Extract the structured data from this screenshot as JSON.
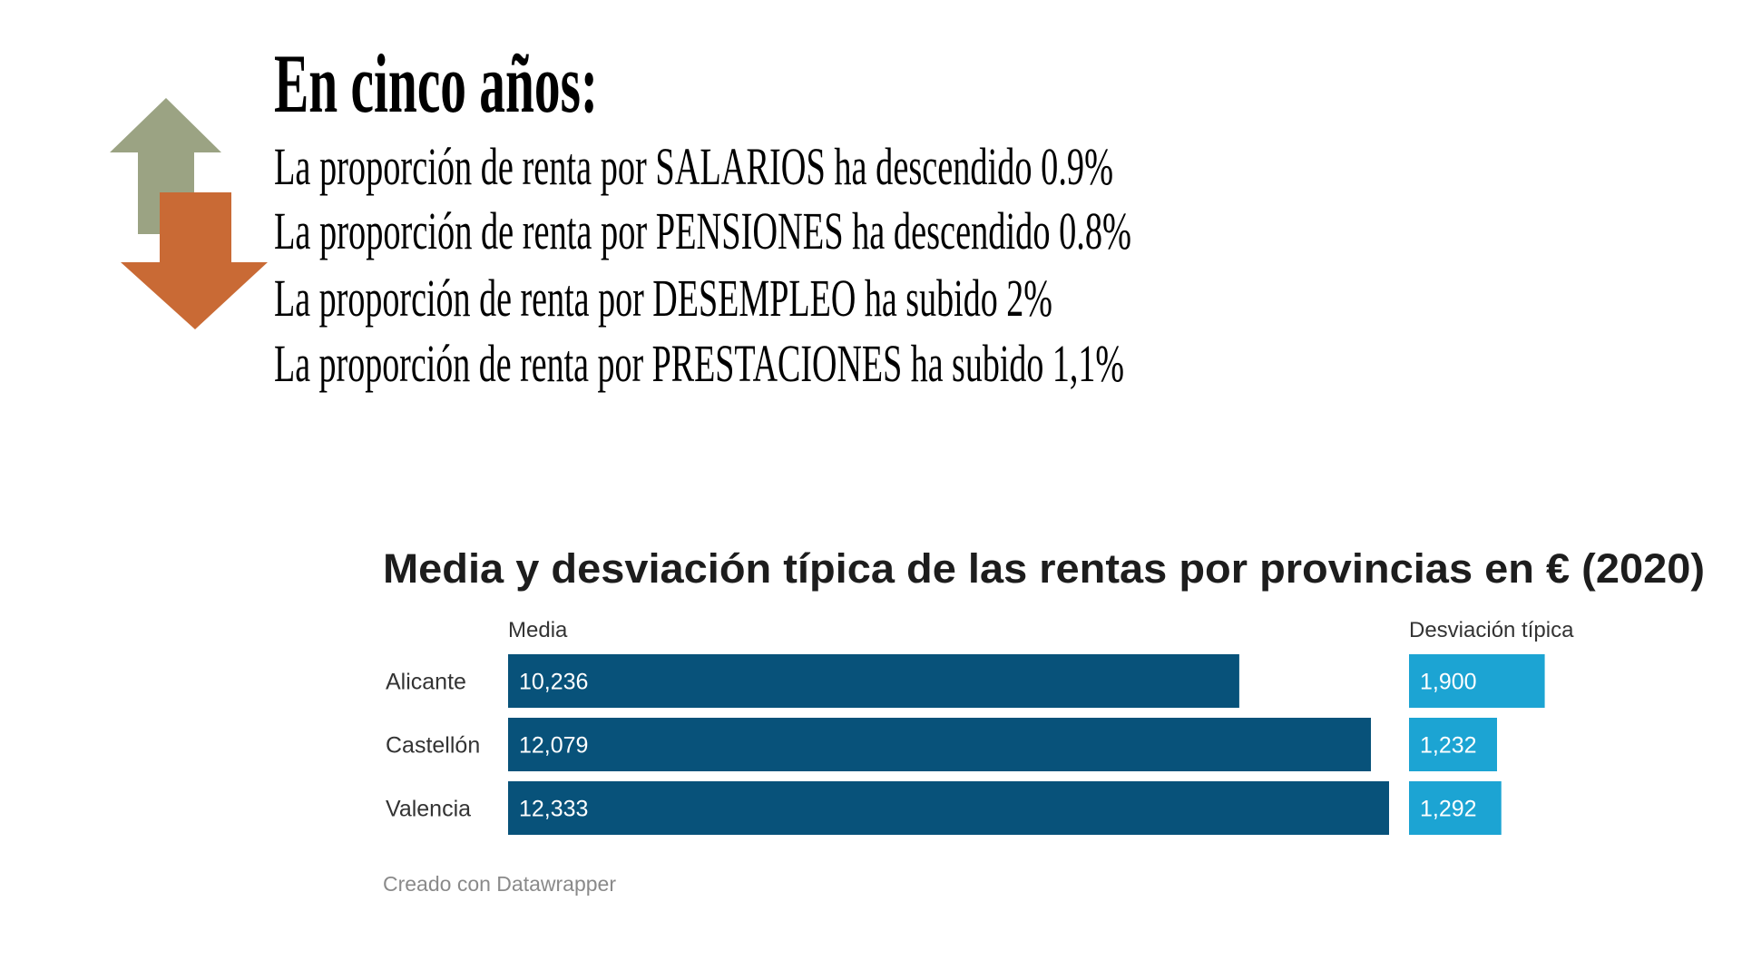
{
  "header": {
    "title": "En cinco años:",
    "lines": [
      "La proporción de renta por SALARIOS ha descendido 0.9%",
      "La proporción de renta por PENSIONES ha descendido 0.8%",
      "La proporción de renta por DESEMPLEO ha subido 2%",
      "La proporción de renta por PRESTACIONES ha subido 1,1%"
    ]
  },
  "chart_data": {
    "type": "bar",
    "title": "Media y desviación típica de las rentas por provincias en € (2020)",
    "categories": [
      "Alicante",
      "Castellón",
      "Valencia"
    ],
    "series": [
      {
        "name": "Media",
        "color": "#08527a",
        "values": [
          10236,
          12079,
          12333
        ],
        "value_labels": [
          "10,236",
          "12,079",
          "12,333"
        ]
      },
      {
        "name": "Desviación típica",
        "color": "#1ca4d3",
        "values": [
          1900,
          1232,
          1292
        ],
        "value_labels": [
          "1,900",
          "1,232",
          "1,292"
        ]
      }
    ],
    "credit": "Creado con Datawrapper"
  }
}
